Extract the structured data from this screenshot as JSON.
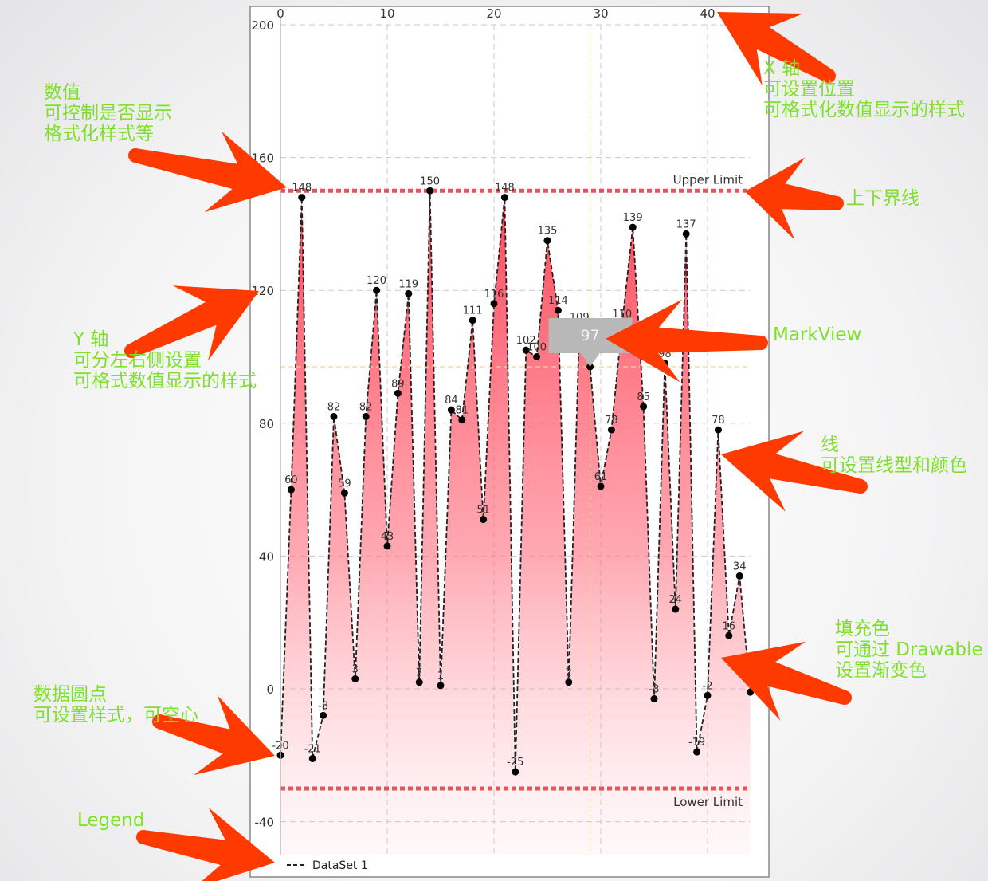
{
  "colors": {
    "annotation_text": "#7ee02a",
    "arrow": "#ff3a00",
    "limit_line": "#e05560",
    "fill_top": "#ff4b5c",
    "line": "#222222",
    "markview_bg": "#b8b8b8",
    "highlight": "#f0d49a"
  },
  "chart_data": {
    "type": "line",
    "x": [
      0,
      1,
      2,
      3,
      4,
      5,
      6,
      7,
      8,
      9,
      10,
      11,
      12,
      13,
      14,
      15,
      16,
      17,
      18,
      19,
      20,
      21,
      22,
      23,
      24,
      25,
      26,
      27,
      28,
      29,
      30,
      31,
      32,
      33,
      34,
      35,
      36,
      37,
      38,
      39,
      40,
      41,
      42,
      43,
      44
    ],
    "series": [
      {
        "name": "DataSet 1",
        "values": [
          -20,
          60,
          148,
          -21,
          -8,
          82,
          59,
          3,
          82,
          120,
          43,
          89,
          119,
          2,
          150,
          1,
          84,
          81,
          111,
          51,
          116,
          148,
          -25,
          102,
          100,
          135,
          114,
          2,
          109,
          97,
          61,
          78,
          110,
          139,
          85,
          -3,
          98,
          24,
          137,
          -19,
          -2,
          78,
          16,
          34,
          -1
        ],
        "line_style": "dashed",
        "filled": true,
        "fill": "gradient",
        "circles": true
      }
    ],
    "xlim": [
      0,
      44
    ],
    "ylim": [
      -50,
      200
    ],
    "x_axis_position": "top",
    "x_ticks": [
      "0",
      "10",
      "20",
      "30",
      "40"
    ],
    "y_ticks": [
      "200",
      "160",
      "120",
      "80",
      "40",
      "0",
      "-40"
    ],
    "y_tick_values": [
      200,
      160,
      120,
      80,
      40,
      0,
      -40
    ],
    "x_tick_values": [
      0,
      10,
      20,
      30,
      40
    ],
    "grid": true,
    "limit_lines": [
      {
        "label": "Upper Limit",
        "value": 150
      },
      {
        "label": "Lower Limit",
        "value": -30
      }
    ],
    "highlight": {
      "x": 29,
      "y": 97
    },
    "markview": {
      "text": "97"
    },
    "legend": {
      "entries": [
        "DataSet 1"
      ],
      "position": "bottom-left"
    }
  },
  "annotations": [
    {
      "id": "values",
      "lines": [
        "数值",
        "可控制是否显示",
        "格式化样式等"
      ]
    },
    {
      "id": "x-axis",
      "lines": [
        "X 轴",
        "可设置位置",
        "可格式化数值显示的样式"
      ]
    },
    {
      "id": "limit-lines",
      "lines": [
        "上下界线"
      ]
    },
    {
      "id": "y-axis",
      "lines": [
        "Y 轴",
        "可分左右侧设置",
        "可格式数值显示的样式"
      ]
    },
    {
      "id": "markview",
      "lines": [
        "MarkView"
      ]
    },
    {
      "id": "line",
      "lines": [
        "线",
        "可设置线型和颜色"
      ]
    },
    {
      "id": "fill",
      "lines": [
        "填充色",
        "可通过 Drawable",
        "设置渐变色"
      ]
    },
    {
      "id": "circles",
      "lines": [
        "数据圆点",
        "可设置样式，可空心"
      ]
    },
    {
      "id": "legend",
      "lines": [
        "Legend"
      ]
    }
  ]
}
